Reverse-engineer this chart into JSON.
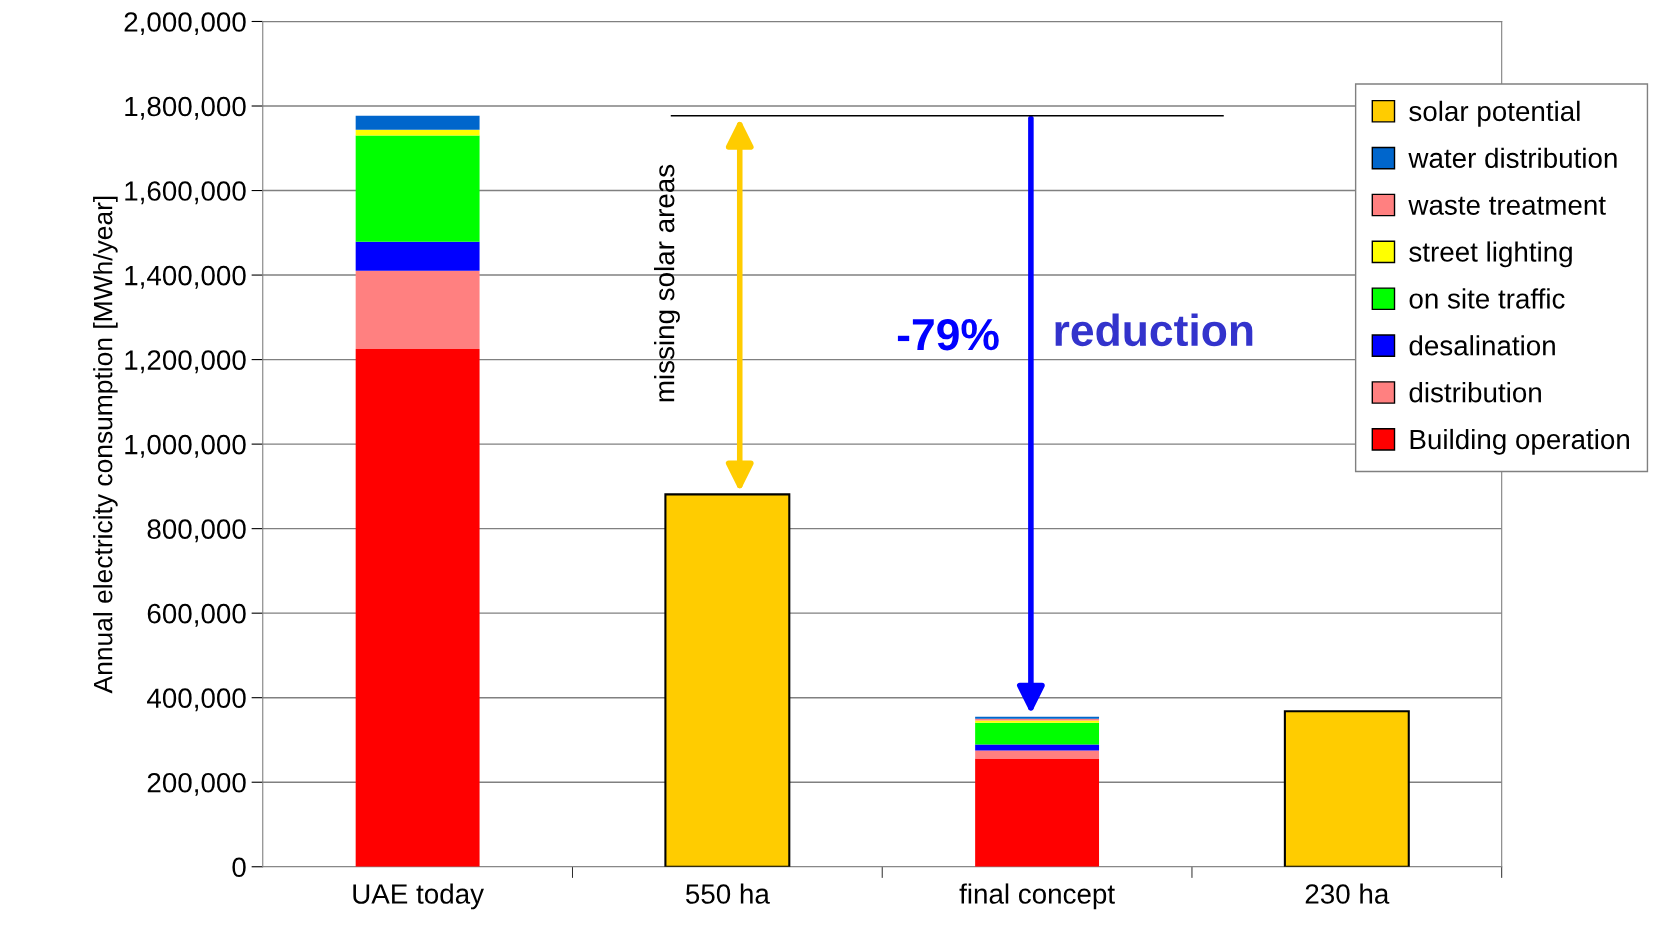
{
  "chart_data": {
    "type": "bar",
    "stacked": true,
    "ylabel": "Annual electricity consumption [MWh/year]",
    "categories": [
      "UAE today",
      "550 ha",
      "final concept",
      "230 ha"
    ],
    "series": [
      {
        "name": "Building operation",
        "color": "#ff0000",
        "values": [
          1225000,
          null,
          256000,
          null
        ]
      },
      {
        "name": "distribution",
        "color": "#ff8080",
        "values": [
          185000,
          null,
          19000,
          null
        ]
      },
      {
        "name": "desalination",
        "color": "#0000ff",
        "values": [
          69000,
          null,
          14000,
          null
        ]
      },
      {
        "name": "on site traffic",
        "color": "#00ff00",
        "values": [
          251000,
          null,
          52000,
          null
        ]
      },
      {
        "name": "street lighting",
        "color": "#ffff00",
        "values": [
          14000,
          null,
          5000,
          null
        ]
      },
      {
        "name": "waste treatment",
        "color": "#ff8080",
        "values": [
          0,
          null,
          4000,
          null
        ]
      },
      {
        "name": "water distribution",
        "color": "#0066cc",
        "values": [
          33000,
          null,
          5000,
          null
        ]
      },
      {
        "name": "solar potential",
        "color": "#ffcc00",
        "values": [
          null,
          881000,
          null,
          368000
        ]
      }
    ],
    "ylim": [
      0,
      2000000
    ],
    "yticks": [
      {
        "value": 0,
        "label": "0"
      },
      {
        "value": 200000,
        "label": "200,000"
      },
      {
        "value": 400000,
        "label": "400,000"
      },
      {
        "value": 600000,
        "label": "600,000"
      },
      {
        "value": 800000,
        "label": "800,000"
      },
      {
        "value": 1000000,
        "label": "1,000,000"
      },
      {
        "value": 1200000,
        "label": "1,200,000"
      },
      {
        "value": 1400000,
        "label": "1,400,000"
      },
      {
        "value": 1600000,
        "label": "1,600,000"
      },
      {
        "value": 1800000,
        "label": "1,800,000"
      },
      {
        "value": 2000000,
        "label": "2,000,000"
      }
    ],
    "grid": "y",
    "legend": "top right",
    "ref_lines": [
      {
        "axis": "y",
        "value": 1777000,
        "color": "#000000"
      }
    ],
    "annotations": [
      "missing solar areas",
      "-79%",
      "reduction"
    ]
  }
}
